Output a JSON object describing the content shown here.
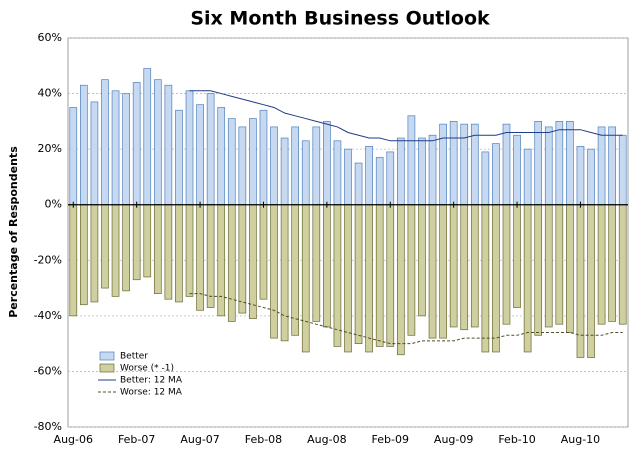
{
  "chart_data": {
    "type": "bar",
    "title": "Six Month Business Outlook",
    "y_label": "Percentage of Respondents",
    "categories": [
      "Aug-06",
      null,
      null,
      null,
      null,
      null,
      "Feb-07",
      null,
      null,
      null,
      null,
      null,
      "Aug-07",
      null,
      null,
      null,
      null,
      null,
      "Feb-08",
      null,
      null,
      null,
      null,
      null,
      "Aug-08",
      null,
      null,
      null,
      null,
      null,
      "Feb-09",
      null,
      null,
      null,
      null,
      null,
      "Aug-09",
      null,
      null,
      null,
      null,
      null,
      "Feb-10",
      null,
      null,
      null,
      null,
      null,
      "Aug-10",
      null,
      null,
      null,
      null
    ],
    "series": [
      {
        "name": "Better",
        "kind": "bar",
        "color": "#c6d9f1",
        "edgecolor": "#4f81bd",
        "values": [
          35,
          43,
          37,
          45,
          41,
          40,
          44,
          49,
          45,
          43,
          34,
          41,
          36,
          40,
          35,
          31,
          28,
          31,
          34,
          28,
          24,
          28,
          23,
          28,
          30,
          23,
          20,
          15,
          21,
          17,
          19,
          24,
          32,
          24,
          25,
          29,
          30,
          29,
          29,
          19,
          22,
          29,
          25,
          20,
          30,
          28,
          30,
          30,
          21,
          20,
          28,
          28,
          25
        ]
      },
      {
        "name": "Worse (* -1)",
        "kind": "bar",
        "color": "#cfcf9f",
        "edgecolor": "#6b6b35",
        "values": [
          -40,
          -36,
          -35,
          -30,
          -33,
          -31,
          -27,
          -26,
          -32,
          -34,
          -35,
          -33,
          -38,
          -37,
          -40,
          -42,
          -39,
          -41,
          -34,
          -48,
          -49,
          -47,
          -53,
          -42,
          -44,
          -51,
          -53,
          -50,
          -53,
          -51,
          -51,
          -54,
          -47,
          -40,
          -48,
          -48,
          -44,
          -45,
          -44,
          -53,
          -53,
          -43,
          -37,
          -53,
          -47,
          -44,
          -43,
          -46,
          -55,
          -55,
          -43,
          -42,
          -43
        ]
      },
      {
        "name": "Better:  12 MA",
        "kind": "line",
        "color": "#1f3c88",
        "dashed": false,
        "values": [
          null,
          null,
          null,
          null,
          null,
          null,
          null,
          null,
          null,
          null,
          null,
          41,
          41,
          41,
          40,
          39,
          38,
          37,
          36,
          35,
          33,
          32,
          31,
          30,
          29,
          28,
          26,
          25,
          24,
          24,
          23,
          23,
          23,
          23,
          23,
          24,
          24,
          24,
          25,
          25,
          25,
          26,
          26,
          26,
          26,
          26,
          27,
          27,
          27,
          26,
          25,
          25,
          25
        ]
      },
      {
        "name": "Worse:  12 MA",
        "kind": "line",
        "color": "#4f4f28",
        "dashed": true,
        "values": [
          null,
          null,
          null,
          null,
          null,
          null,
          null,
          null,
          null,
          null,
          null,
          -32,
          -32,
          -33,
          -33,
          -34,
          -35,
          -36,
          -37,
          -38,
          -40,
          -41,
          -42,
          -43,
          -44,
          -45,
          -46,
          -47,
          -48,
          -49,
          -50,
          -50,
          -50,
          -49,
          -49,
          -49,
          -49,
          -48,
          -48,
          -48,
          -48,
          -47,
          -47,
          -46,
          -46,
          -46,
          -46,
          -46,
          -47,
          -47,
          -47,
          -46,
          -46
        ]
      }
    ],
    "ylim": [
      -80,
      60
    ],
    "yticks": [
      {
        "value": -80,
        "label": "-80%"
      },
      {
        "value": -60,
        "label": "-60%"
      },
      {
        "value": -40,
        "label": "-40%"
      },
      {
        "value": -20,
        "label": "-20%"
      },
      {
        "value": 0,
        "label": "0%"
      },
      {
        "value": 20,
        "label": "20%"
      },
      {
        "value": 40,
        "label": "40%"
      },
      {
        "value": 60,
        "label": "60%"
      }
    ],
    "grid": true,
    "legend": "lower left"
  }
}
